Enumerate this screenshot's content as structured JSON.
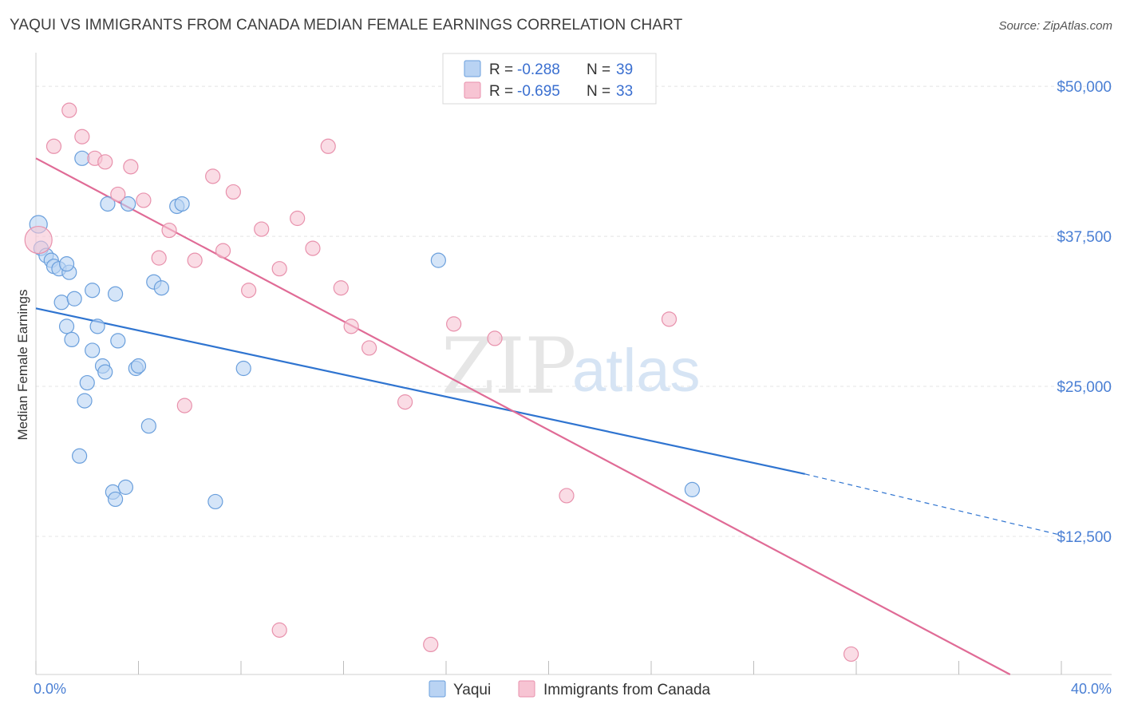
{
  "title": "YAQUI VS IMMIGRANTS FROM CANADA MEDIAN FEMALE EARNINGS CORRELATION CHART",
  "source": "Source: ZipAtlas.com",
  "watermark": {
    "zip": "ZIP",
    "atlas": "atlas"
  },
  "colors": {
    "blue_fill": "#b9d3f3",
    "blue_stroke": "#6a9fdc",
    "blue_line": "#2f74d0",
    "pink_fill": "#f7c4d3",
    "pink_stroke": "#e891ac",
    "pink_line": "#e06b96",
    "tick_text": "#4a7fd4",
    "grid": "#e4e4e4"
  },
  "legend": {
    "rows": [
      {
        "r_label": "R =",
        "r_value": "-0.288",
        "n_label": "N =",
        "n_value": "39",
        "series": "blue"
      },
      {
        "r_label": "R =",
        "r_value": "-0.695",
        "n_label": "N =",
        "n_value": "33",
        "series": "pink"
      }
    ]
  },
  "bottom_legend": [
    "Yaqui",
    "Immigrants from Canada"
  ],
  "chart_data": {
    "type": "scatter",
    "title": "YAQUI VS IMMIGRANTS FROM CANADA MEDIAN FEMALE EARNINGS CORRELATION CHART",
    "xlabel": "",
    "ylabel": "Median Female Earnings",
    "xlim": [
      0,
      40
    ],
    "ylim": [
      1000,
      52000
    ],
    "x_tick_labels": [
      "0.0%",
      "40.0%"
    ],
    "y_ticks": [
      12500,
      25000,
      37500,
      50000
    ],
    "y_tick_labels": [
      "$12,500",
      "$25,000",
      "$37,500",
      "$50,000"
    ],
    "grid": true,
    "series": [
      {
        "name": "Yaqui",
        "points": [
          [
            0.1,
            38500
          ],
          [
            0.2,
            36500
          ],
          [
            0.4,
            35900
          ],
          [
            0.6,
            35500
          ],
          [
            0.7,
            35000
          ],
          [
            0.9,
            34800
          ],
          [
            1.3,
            34500
          ],
          [
            1.0,
            32000
          ],
          [
            1.5,
            32300
          ],
          [
            2.2,
            33000
          ],
          [
            3.1,
            32700
          ],
          [
            4.6,
            33700
          ],
          [
            4.9,
            33200
          ],
          [
            1.8,
            44000
          ],
          [
            2.8,
            40200
          ],
          [
            3.6,
            40200
          ],
          [
            5.5,
            40000
          ],
          [
            5.7,
            40200
          ],
          [
            1.2,
            30000
          ],
          [
            1.4,
            28900
          ],
          [
            2.4,
            30000
          ],
          [
            2.2,
            28000
          ],
          [
            3.2,
            28800
          ],
          [
            2.6,
            26700
          ],
          [
            2.7,
            26200
          ],
          [
            3.9,
            26500
          ],
          [
            4.0,
            26700
          ],
          [
            8.1,
            26500
          ],
          [
            2.0,
            25300
          ],
          [
            1.9,
            23800
          ],
          [
            4.4,
            21700
          ],
          [
            1.7,
            19200
          ],
          [
            3.0,
            16200
          ],
          [
            3.1,
            15600
          ],
          [
            3.5,
            16600
          ],
          [
            7.0,
            15400
          ],
          [
            15.7,
            35500
          ],
          [
            25.6,
            16400
          ],
          [
            1.2,
            35200
          ]
        ],
        "trend": {
          "x0": 0,
          "y0": 31500,
          "x1": 30,
          "y1": 17700,
          "dashed_to_x": 40,
          "dashed_to_y": 12600
        }
      },
      {
        "name": "Immigrants from Canada",
        "points": [
          [
            0.1,
            37200
          ],
          [
            1.3,
            48000
          ],
          [
            0.7,
            45000
          ],
          [
            1.8,
            45800
          ],
          [
            2.3,
            44000
          ],
          [
            2.7,
            43700
          ],
          [
            3.7,
            43300
          ],
          [
            3.2,
            41000
          ],
          [
            4.2,
            40500
          ],
          [
            6.9,
            42500
          ],
          [
            7.7,
            41200
          ],
          [
            11.4,
            45000
          ],
          [
            5.2,
            38000
          ],
          [
            4.8,
            35700
          ],
          [
            6.2,
            35500
          ],
          [
            7.3,
            36300
          ],
          [
            8.8,
            38100
          ],
          [
            10.2,
            39000
          ],
          [
            9.5,
            34800
          ],
          [
            10.8,
            36500
          ],
          [
            8.3,
            33000
          ],
          [
            11.9,
            33200
          ],
          [
            12.3,
            30000
          ],
          [
            13.0,
            28200
          ],
          [
            16.3,
            30200
          ],
          [
            17.9,
            29000
          ],
          [
            24.7,
            30600
          ],
          [
            14.4,
            23700
          ],
          [
            5.8,
            23400
          ],
          [
            20.7,
            15900
          ],
          [
            9.5,
            4700
          ],
          [
            15.4,
            3500
          ],
          [
            31.8,
            2700
          ]
        ],
        "trend": {
          "x0": 0,
          "y0": 44000,
          "x1": 38,
          "y1": 1000
        }
      }
    ]
  }
}
